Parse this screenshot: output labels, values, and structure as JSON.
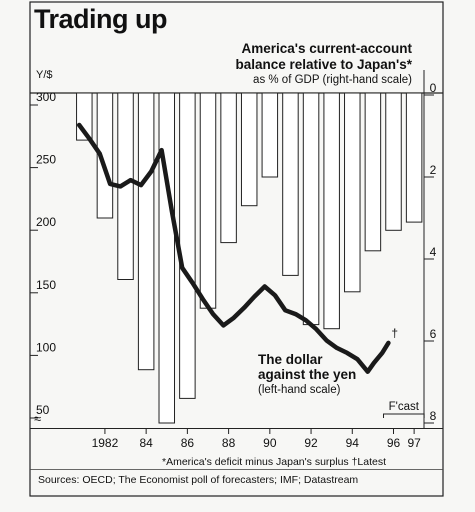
{
  "title": "Trading up",
  "left_axis_label": "Y/$",
  "right_axis_title_lines": [
    "America's current-account",
    "balance relative to Japan's*"
  ],
  "right_axis_subtitle": "as % of GDP (right-hand scale)",
  "line_label_lines": [
    "The dollar",
    "against the yen"
  ],
  "line_sublabel": "(left-hand scale)",
  "latest_marker": "†",
  "forecast_label": "F'cast",
  "axis_break_symbol": "≈",
  "footnote": "*America's deficit minus Japan's surplus   †Latest",
  "source": "Sources: OECD; The Economist poll of forecasters; IMF; Datastream",
  "chart_data": {
    "type": "bar+line",
    "x_tick_labels": [
      "1982",
      "84",
      "86",
      "88",
      "90",
      "92",
      "94",
      "96",
      "97"
    ],
    "bars": {
      "name": "America's current-account balance relative to Japan's*",
      "axis": "right",
      "ylim": [
        0,
        8
      ],
      "y_ticks": [
        0,
        2,
        4,
        6,
        8
      ],
      "categories": [
        "1981",
        "1982",
        "1983",
        "1984",
        "1985",
        "1986",
        "1987",
        "1988",
        "1989",
        "1990",
        "1991",
        "1992",
        "1993",
        "1994",
        "1995",
        "1996",
        "1997"
      ],
      "values": [
        1.1,
        3.0,
        4.5,
        6.7,
        8.0,
        7.4,
        5.2,
        3.6,
        2.7,
        2.0,
        4.4,
        5.6,
        5.7,
        4.8,
        3.8,
        3.3,
        3.1
      ]
    },
    "line": {
      "name": "The dollar against the yen",
      "axis": "left",
      "ylim": [
        40,
        300
      ],
      "y_ticks": [
        50,
        100,
        150,
        200,
        250,
        300
      ],
      "x": [
        1981.0,
        1981.5,
        1982.0,
        1982.5,
        1983.0,
        1983.5,
        1984.0,
        1984.5,
        1985.0,
        1985.5,
        1986.0,
        1986.5,
        1987.0,
        1987.5,
        1988.0,
        1988.5,
        1989.0,
        1989.5,
        1990.0,
        1990.5,
        1991.0,
        1991.5,
        1992.0,
        1992.5,
        1993.0,
        1993.5,
        1994.0,
        1994.5,
        1995.0,
        1995.3,
        1995.7,
        1996.0
      ],
      "y": [
        284,
        273,
        261,
        237,
        235,
        240,
        236,
        247,
        264,
        215,
        170,
        158,
        145,
        133,
        124,
        130,
        138,
        147,
        155,
        148,
        136,
        133,
        128,
        121,
        112,
        106,
        102,
        97,
        87,
        94,
        102,
        110
      ]
    },
    "forecast_range": [
      1996,
      1997
    ],
    "grid": false,
    "legend": "none"
  }
}
